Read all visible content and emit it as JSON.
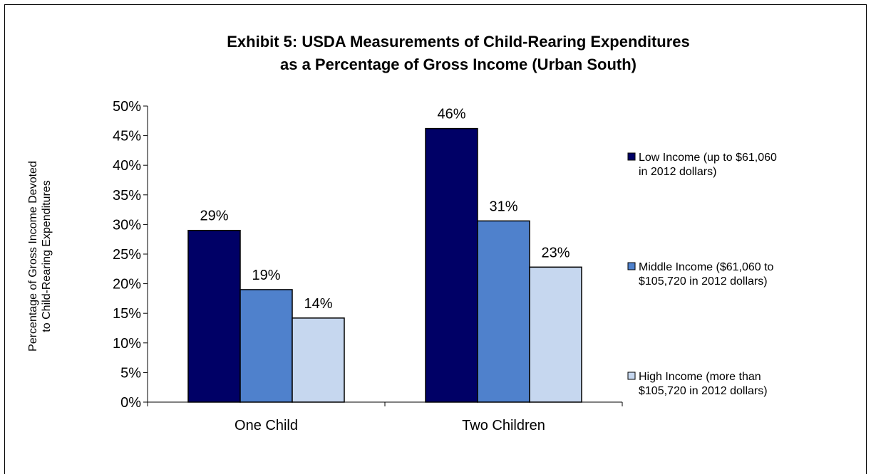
{
  "chart_data": {
    "type": "bar",
    "title": [
      "Exhibit 5:  USDA Measurements of Child-Rearing Expenditures",
      "as a Percentage of Gross Income (Urban South)"
    ],
    "ylabel": [
      "Percentage of Gross Income Devoted",
      "to Child-Rearing Expenditures"
    ],
    "xlabel": "",
    "categories": [
      "One Child",
      "Two Children"
    ],
    "ylim": [
      0,
      50
    ],
    "yticks": [
      "0%",
      "5%",
      "10%",
      "15%",
      "20%",
      "25%",
      "30%",
      "35%",
      "40%",
      "45%",
      "50%"
    ],
    "grid": false,
    "legend_position": "right",
    "series": [
      {
        "name": [
          "Low Income (up to $61,060",
          "in 2012 dollars)"
        ],
        "values": [
          29,
          46.2
        ],
        "labels": [
          "29%",
          "46%"
        ],
        "color": "#000066"
      },
      {
        "name": [
          "Middle Income ($61,060 to",
          "$105,720 in 2012 dollars)"
        ],
        "values": [
          19,
          30.6
        ],
        "labels": [
          "19%",
          "31%"
        ],
        "color": "#4F81CC"
      },
      {
        "name": [
          "High Income (more than",
          "$105,720 in 2012 dollars)"
        ],
        "values": [
          14.2,
          22.8
        ],
        "labels": [
          "14%",
          "23%"
        ],
        "color": "#C6D7EF"
      }
    ]
  }
}
